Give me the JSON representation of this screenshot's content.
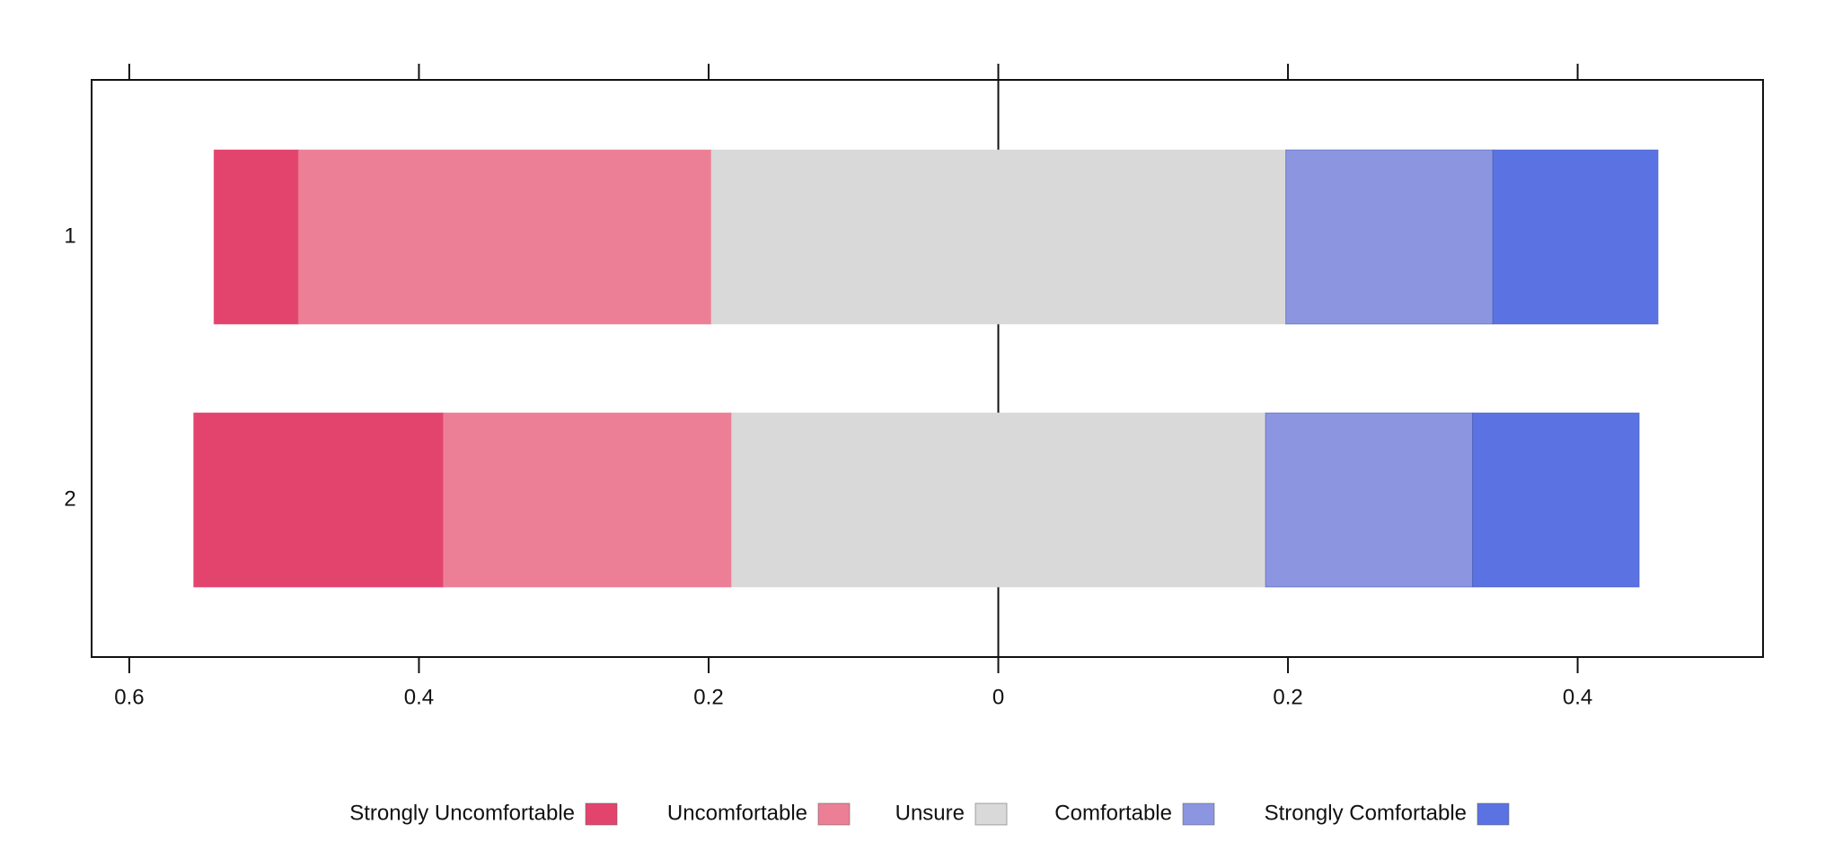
{
  "chart_data": {
    "type": "diverging-bar",
    "categories": [
      "1",
      "2"
    ],
    "series": [
      {
        "name": "Strongly Uncomfortable",
        "color": "#e3446e",
        "side": "negative",
        "values": [
          0.058,
          0.172
        ]
      },
      {
        "name": "Uncomfortable",
        "color": "#ec7f95",
        "side": "negative",
        "values": [
          0.285,
          0.199
        ]
      },
      {
        "name": "Unsure",
        "color": "#d9d9d9",
        "side": "neutral",
        "values": [
          0.397,
          0.369
        ]
      },
      {
        "name": "Comfortable",
        "color": "#8b95e0",
        "side": "positive",
        "values": [
          0.143,
          0.143
        ]
      },
      {
        "name": "Strongly Comfortable",
        "color": "#5b73e2",
        "side": "positive",
        "values": [
          0.114,
          0.115
        ]
      }
    ],
    "xlim": [
      -0.626,
      0.528
    ],
    "xticks": [
      {
        "value": -0.6,
        "label": "0.6"
      },
      {
        "value": -0.4,
        "label": "0.4"
      },
      {
        "value": -0.2,
        "label": "0.2"
      },
      0,
      0.2,
      0.4
    ],
    "zero_line": true,
    "legend": "bottom"
  }
}
